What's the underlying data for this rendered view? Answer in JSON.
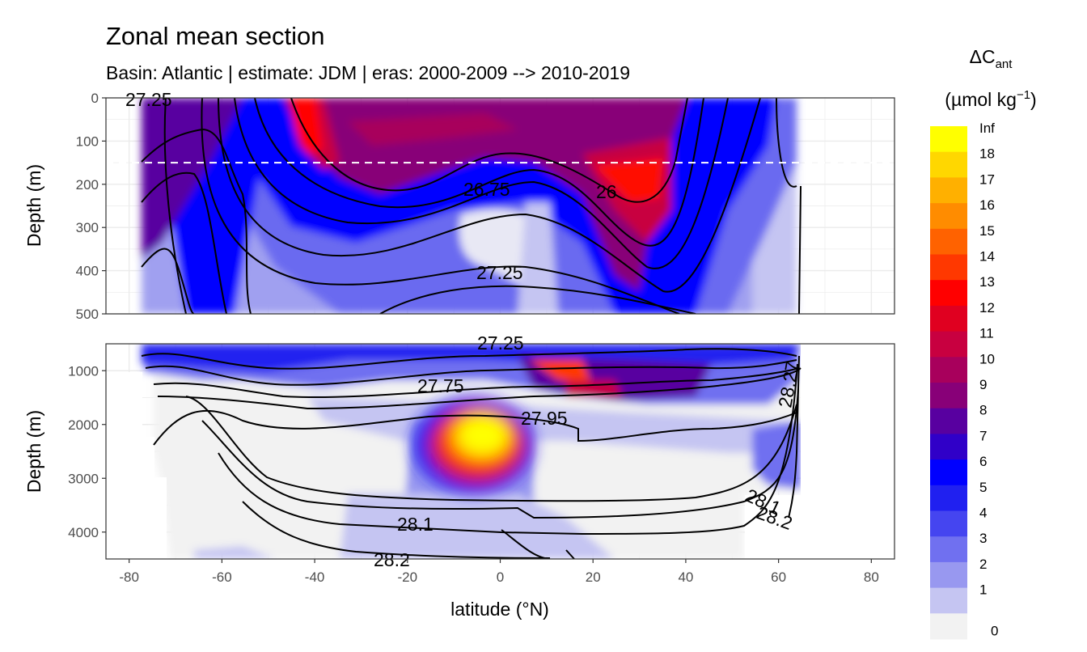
{
  "chart_data": {
    "type": "heatmap",
    "title": "Zonal mean section",
    "subtitle": "Basin: Atlantic | estimate: JDM  | eras: 2000-2009 --> 2010-2019",
    "xlabel": "latitude (°N)",
    "ylabel": "Depth (m)",
    "xlim": [
      -85,
      85
    ],
    "x_ticks": [
      "-80",
      "-60",
      "-40",
      "-20",
      "0",
      "20",
      "40",
      "60",
      "80"
    ],
    "panels": [
      {
        "name": "upper",
        "ylim": [
          500,
          0
        ],
        "y_ticks": [
          "0",
          "100",
          "200",
          "300",
          "400",
          "500"
        ],
        "reference_line_depth": 150
      },
      {
        "name": "lower",
        "ylim": [
          4500,
          500
        ],
        "y_ticks": [
          "1000",
          "2000",
          "3000",
          "4000"
        ]
      }
    ],
    "legend": {
      "title": "ΔC",
      "title_sub": "ant",
      "unit": "(µmol kg",
      "unit_sup": "−1",
      "unit_close": ")",
      "placement": "right",
      "levels": [
        "Inf",
        "18",
        "17",
        "16",
        "15",
        "14",
        "13",
        "12",
        "11",
        "10",
        "9",
        "8",
        "7",
        "6",
        "5",
        "4",
        "3",
        "2",
        "1",
        "0"
      ],
      "colors": [
        "#ffff00",
        "#ffd700",
        "#ffb000",
        "#ff8c00",
        "#ff6200",
        "#ff3800",
        "#ff0000",
        "#e00020",
        "#c80040",
        "#a8005c",
        "#880078",
        "#5800a0",
        "#3000c8",
        "#0000ff",
        "#2020f0",
        "#4545f0",
        "#7070f0",
        "#9898f0",
        "#c5c5f2",
        "#f2f2f2"
      ]
    },
    "isopycnal_labels": [
      "27.25",
      "26.75",
      "26",
      "27.25",
      "27.25",
      "27.75",
      "27.95",
      "28.1",
      "28.1",
      "28.2",
      "28.2",
      "28.27"
    ]
  }
}
